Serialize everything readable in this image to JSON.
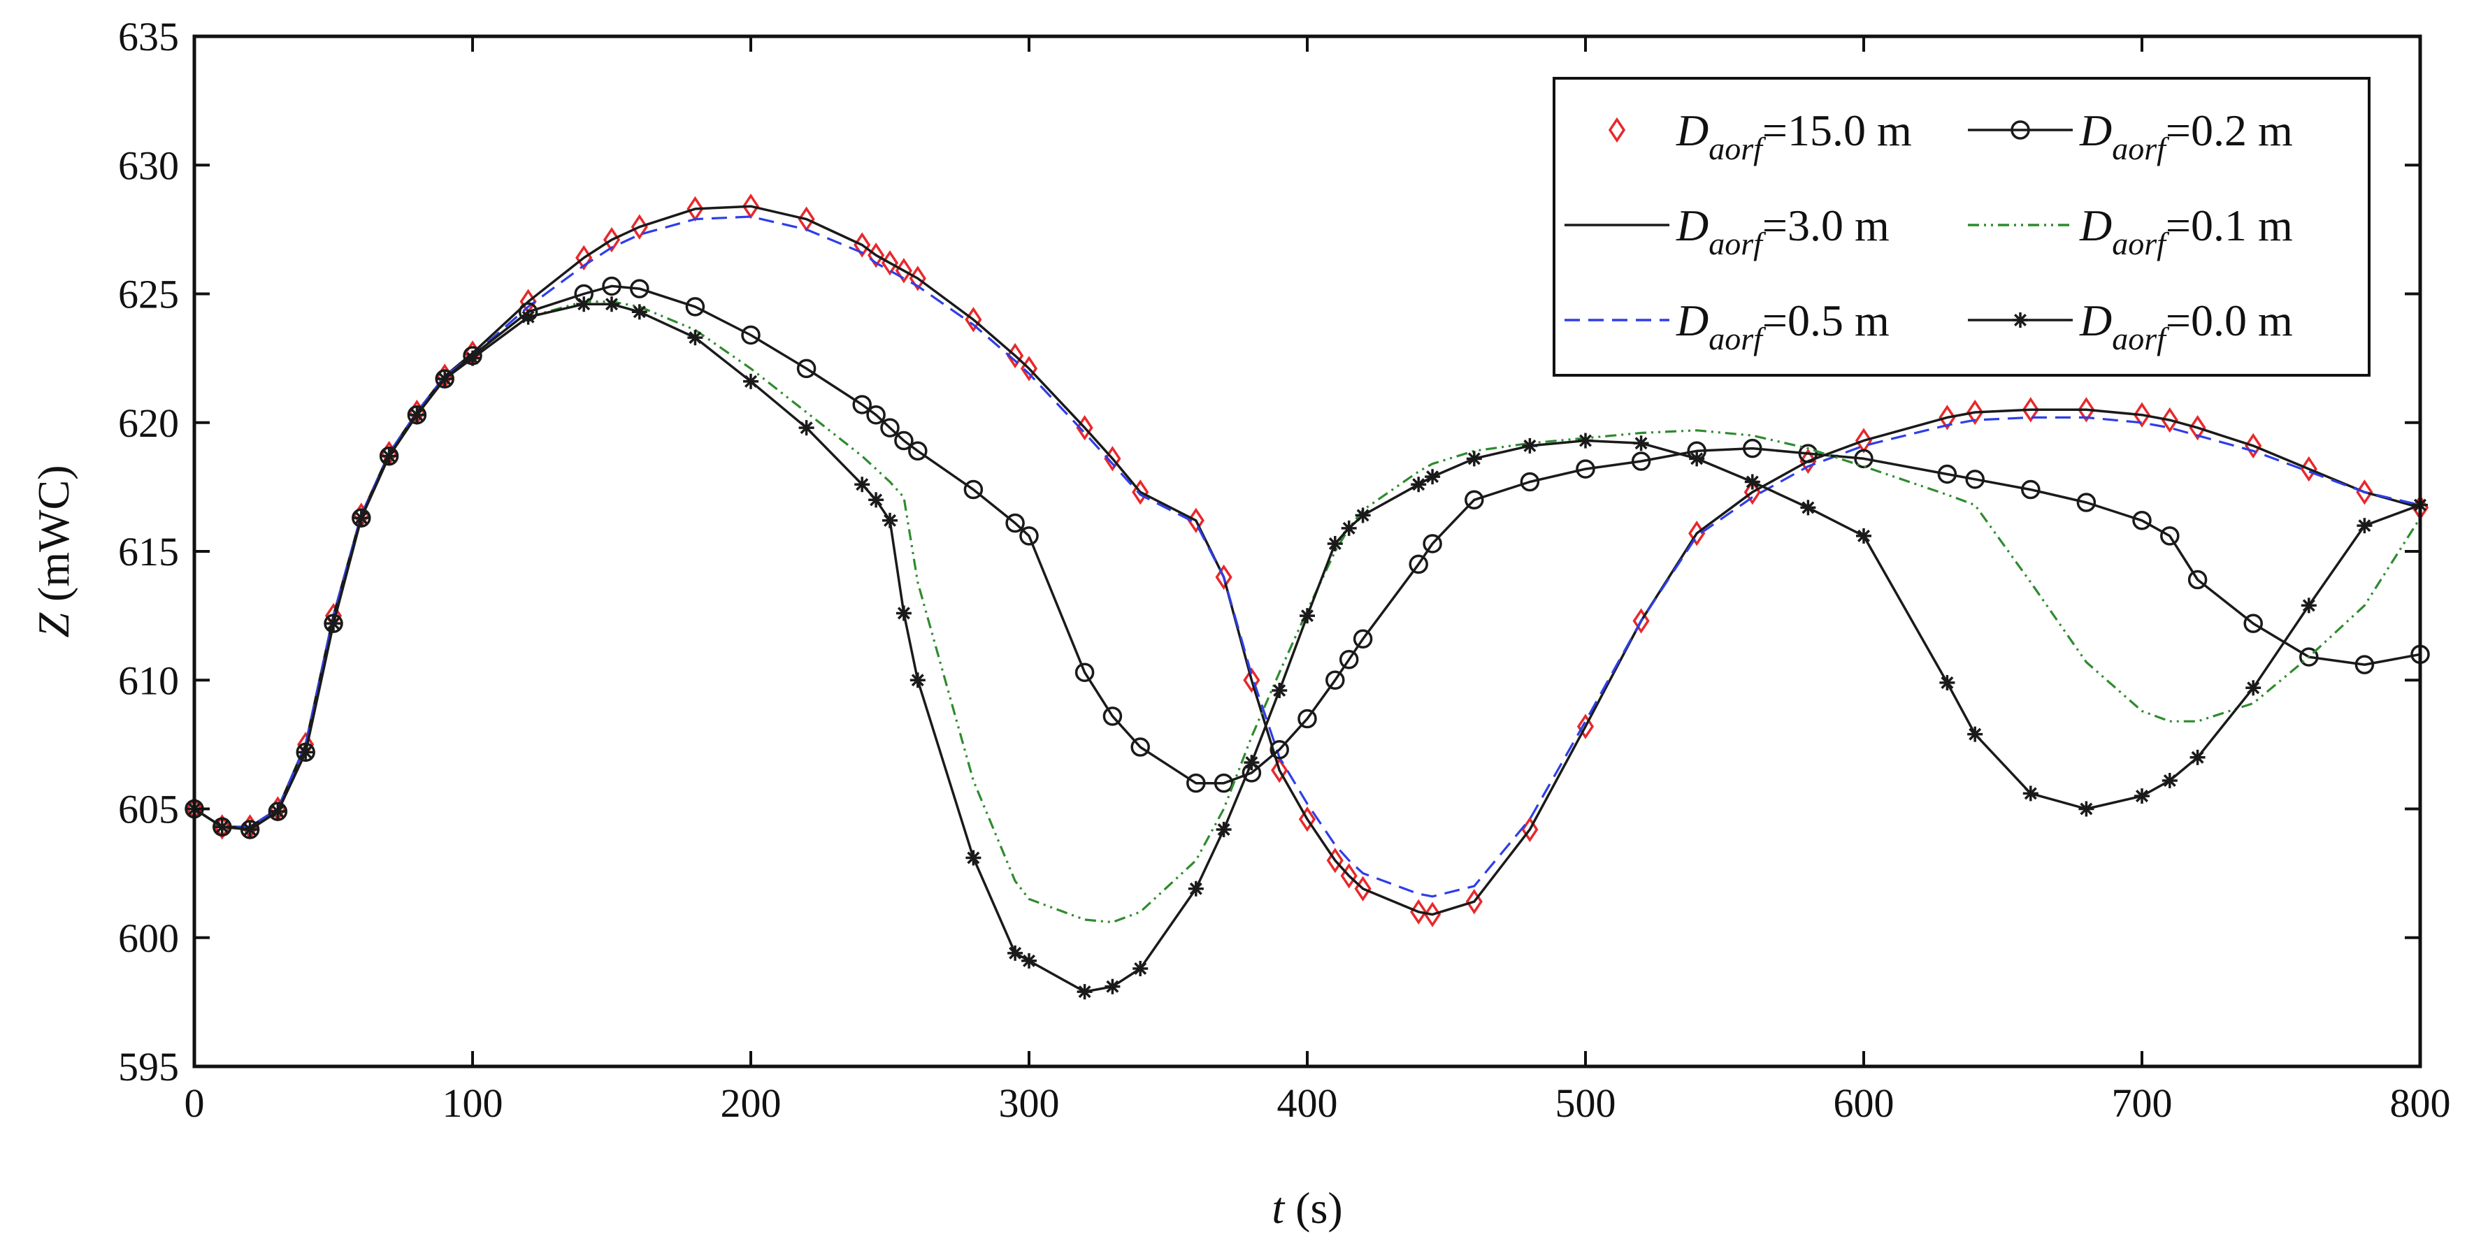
{
  "chart_data": {
    "type": "line",
    "title": "",
    "xlabel": {
      "symbol": "t",
      "unit": " (s)"
    },
    "ylabel": {
      "symbol": "Z",
      "unit": " (mWC)"
    },
    "xlim": [
      0,
      800
    ],
    "ylim": [
      595,
      635
    ],
    "xticks": [
      0,
      100,
      200,
      300,
      400,
      500,
      600,
      700,
      800
    ],
    "yticks": [
      595,
      600,
      605,
      610,
      615,
      620,
      625,
      630,
      635
    ],
    "grid": false,
    "legend_position": "top-right",
    "x": [
      0,
      10,
      20,
      30,
      40,
      50,
      60,
      70,
      80,
      90,
      100,
      120,
      140,
      150,
      160,
      180,
      200,
      220,
      240,
      245,
      250,
      255,
      260,
      280,
      295,
      300,
      320,
      330,
      340,
      360,
      370,
      380,
      390,
      400,
      410,
      415,
      420,
      440,
      445,
      460,
      480,
      500,
      520,
      540,
      560,
      580,
      600,
      630,
      640,
      660,
      680,
      700,
      710,
      720,
      740,
      760,
      780,
      800
    ],
    "series": [
      {
        "name_symbol": "D",
        "name_subscript": "aorf",
        "name_value": "=15.0 m",
        "style": "marker",
        "marker": "diamond",
        "color": "#e8282b",
        "values": [
          605.0,
          604.3,
          604.3,
          605.0,
          607.5,
          612.5,
          616.4,
          618.8,
          620.4,
          621.8,
          622.7,
          624.7,
          626.4,
          627.1,
          627.6,
          628.3,
          628.4,
          627.9,
          626.9,
          626.5,
          626.2,
          625.9,
          625.6,
          624.0,
          622.6,
          622.1,
          619.8,
          618.6,
          617.3,
          616.2,
          614.0,
          610.0,
          606.5,
          604.6,
          603.0,
          602.4,
          601.9,
          601.0,
          600.9,
          601.4,
          604.2,
          608.2,
          612.3,
          615.7,
          617.3,
          618.5,
          619.3,
          620.2,
          620.4,
          620.5,
          620.5,
          620.3,
          620.1,
          619.8,
          619.1,
          618.2,
          617.3,
          616.7
        ]
      },
      {
        "name_symbol": "D",
        "name_subscript": "aorf",
        "name_value": "=3.0 m",
        "style": "solid",
        "marker": "none",
        "color": "#1a1a1a",
        "values": [
          605.0,
          604.3,
          604.3,
          605.0,
          607.5,
          612.5,
          616.4,
          618.8,
          620.4,
          621.8,
          622.7,
          624.7,
          626.4,
          627.1,
          627.6,
          628.3,
          628.4,
          627.9,
          626.9,
          626.5,
          626.2,
          625.9,
          625.6,
          624.0,
          622.6,
          622.1,
          619.8,
          618.6,
          617.3,
          616.2,
          614.0,
          610.0,
          606.5,
          604.6,
          603.0,
          602.4,
          601.9,
          601.0,
          600.9,
          601.4,
          604.2,
          608.2,
          612.3,
          615.7,
          617.3,
          618.5,
          619.3,
          620.2,
          620.4,
          620.5,
          620.5,
          620.3,
          620.1,
          619.8,
          619.1,
          618.2,
          617.3,
          616.7
        ]
      },
      {
        "name_symbol": "D",
        "name_subscript": "aorf",
        "name_value": "=0.5 m",
        "style": "dashed",
        "marker": "none",
        "color": "#2d3ee8",
        "values": [
          605.0,
          604.3,
          604.3,
          605.0,
          607.5,
          612.5,
          616.4,
          618.8,
          620.4,
          621.8,
          622.6,
          624.5,
          626.1,
          626.8,
          627.3,
          627.9,
          628.0,
          627.5,
          626.6,
          626.2,
          625.9,
          625.6,
          625.3,
          623.8,
          622.4,
          621.9,
          619.6,
          618.4,
          617.2,
          616.1,
          614.0,
          610.2,
          607.0,
          605.2,
          603.6,
          603.0,
          602.5,
          601.7,
          601.6,
          602.0,
          604.6,
          608.4,
          612.3,
          615.6,
          617.1,
          618.3,
          619.1,
          619.9,
          620.1,
          620.2,
          620.2,
          620.0,
          619.8,
          619.5,
          618.9,
          618.1,
          617.3,
          616.8
        ]
      },
      {
        "name_symbol": "D",
        "name_subscript": "aorf",
        "name_value": "=0.2 m",
        "style": "solid",
        "marker": "circle",
        "color": "#1a1a1a",
        "values": [
          605.0,
          604.3,
          604.2,
          604.9,
          607.2,
          612.2,
          616.3,
          618.7,
          620.3,
          621.7,
          622.6,
          624.3,
          625.0,
          625.3,
          625.2,
          624.5,
          623.4,
          622.1,
          620.7,
          620.3,
          619.8,
          619.3,
          618.9,
          617.4,
          616.1,
          615.6,
          610.3,
          608.6,
          607.4,
          606.0,
          606.0,
          606.4,
          607.3,
          608.5,
          610.0,
          610.8,
          611.6,
          614.5,
          615.3,
          617.0,
          617.7,
          618.2,
          618.5,
          618.9,
          619.0,
          618.8,
          618.6,
          618.0,
          617.8,
          617.4,
          616.9,
          616.2,
          615.6,
          613.9,
          612.2,
          610.9,
          610.6,
          611.0
        ]
      },
      {
        "name_symbol": "D",
        "name_subscript": "aorf",
        "name_value": "=0.1 m",
        "style": "dashdotdot",
        "marker": "none",
        "color": "#2e8b2e",
        "values": [
          605.0,
          604.3,
          604.2,
          604.9,
          607.2,
          612.2,
          616.3,
          618.7,
          620.3,
          621.7,
          622.5,
          624.1,
          624.7,
          624.7,
          624.5,
          623.6,
          622.1,
          620.4,
          618.7,
          618.2,
          617.7,
          617.1,
          613.8,
          606.1,
          602.2,
          601.5,
          600.7,
          600.6,
          601.0,
          603.0,
          605.0,
          607.8,
          610.3,
          612.7,
          615.0,
          615.9,
          616.6,
          618.1,
          618.4,
          618.9,
          619.2,
          619.4,
          619.6,
          619.7,
          619.5,
          619.0,
          618.3,
          617.2,
          616.8,
          613.8,
          610.7,
          608.8,
          608.4,
          608.4,
          609.1,
          610.9,
          612.9,
          616.3
        ]
      },
      {
        "name_symbol": "D",
        "name_subscript": "aorf",
        "name_value": "=0.0 m",
        "style": "solid",
        "marker": "star",
        "color": "#1a1a1a",
        "values": [
          605.0,
          604.3,
          604.2,
          604.9,
          607.2,
          612.2,
          616.3,
          618.7,
          620.3,
          621.7,
          622.5,
          624.1,
          624.6,
          624.6,
          624.3,
          623.3,
          621.6,
          619.8,
          617.6,
          617.0,
          616.2,
          612.6,
          610.0,
          603.1,
          599.4,
          599.1,
          597.9,
          598.1,
          598.8,
          601.9,
          604.2,
          606.8,
          609.6,
          612.5,
          615.3,
          615.9,
          616.4,
          617.6,
          617.9,
          618.6,
          619.1,
          619.3,
          619.2,
          618.6,
          617.7,
          616.7,
          615.6,
          609.9,
          607.9,
          605.6,
          605.0,
          605.5,
          606.1,
          607.0,
          609.7,
          612.9,
          616.0,
          616.8
        ]
      }
    ]
  }
}
